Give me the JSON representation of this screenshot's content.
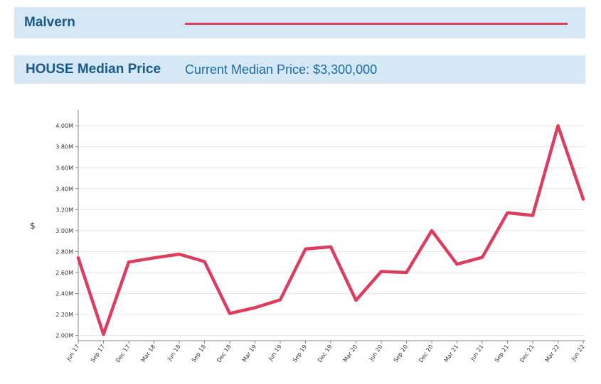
{
  "header": {
    "suburb": "Malvern",
    "accent_color": "#dd3d5e",
    "band_color": "#d6e8f5"
  },
  "subheader": {
    "title": "HOUSE Median Price",
    "current": "Current Median Price: $3,300,000"
  },
  "chart_data": {
    "type": "line",
    "ylabel": "$",
    "ylim": [
      1950000,
      4150000
    ],
    "yticks": [
      2000000,
      2200000,
      2400000,
      2600000,
      2800000,
      3000000,
      3200000,
      3400000,
      3600000,
      3800000,
      4000000
    ],
    "ytick_labels": [
      "2.00M",
      "2.20M",
      "2.40M",
      "2.60M",
      "2.80M",
      "3.00M",
      "3.20M",
      "3.40M",
      "3.60M",
      "3.80M",
      "4.00M"
    ],
    "categories": [
      "Jun 17",
      "Sep 17",
      "Dec 17",
      "Mar 18",
      "Jun 18",
      "Sep 18",
      "Dec 18",
      "Mar 19",
      "Jun 19",
      "Sep 19",
      "Dec 19",
      "Mar 20",
      "Jun 20",
      "Sep 20",
      "Dec 20",
      "Mar 21",
      "Jun 21",
      "Sep 21",
      "Dec 21",
      "Mar 22",
      "Jun 22"
    ],
    "series": [
      {
        "color": "#dd3d5e",
        "values": [
          2740000,
          2010000,
          2700000,
          2740000,
          2775000,
          2705000,
          2210000,
          2265000,
          2340000,
          2825000,
          2845000,
          2335000,
          2610000,
          2600000,
          3000000,
          2680000,
          2745000,
          3170000,
          3145000,
          4000000,
          3300000
        ]
      }
    ],
    "grid": true
  }
}
